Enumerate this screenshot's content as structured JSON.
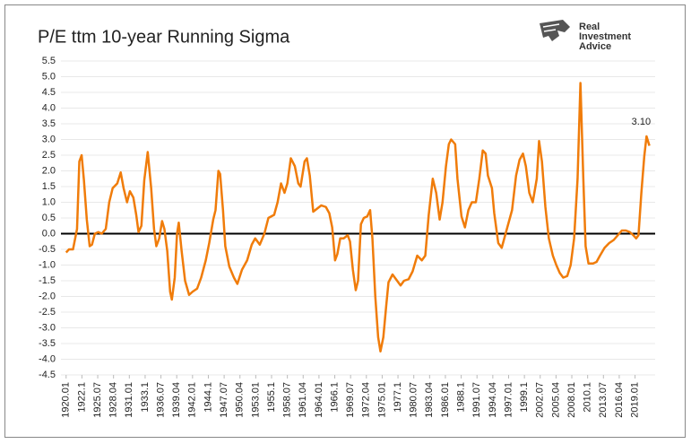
{
  "chart_data": {
    "type": "line",
    "title": "P/E ttm 10-year Running Sigma",
    "x": [
      1920.0,
      1920.5,
      1921.2,
      1921.9,
      1922.3,
      1922.7,
      1923.1,
      1923.6,
      1924.1,
      1924.5,
      1925.0,
      1925.6,
      1926.2,
      1926.9,
      1927.5,
      1928.1,
      1928.9,
      1929.5,
      1930.0,
      1930.6,
      1931.1,
      1931.7,
      1932.2,
      1932.6,
      1933.1,
      1933.6,
      1934.2,
      1934.8,
      1935.3,
      1935.7,
      1936.2,
      1936.7,
      1937.1,
      1937.6,
      1938.1,
      1938.4,
      1938.9,
      1939.3,
      1939.6,
      1940.1,
      1940.7,
      1941.4,
      1942.0,
      1942.8,
      1943.5,
      1944.3,
      1944.9,
      1945.6,
      1946.0,
      1946.5,
      1946.8,
      1947.3,
      1947.7,
      1948.4,
      1949.2,
      1949.8,
      1950.6,
      1951.5,
      1952.3,
      1952.9,
      1953.7,
      1954.5,
      1955.2,
      1956.2,
      1956.8,
      1957.4,
      1958.0,
      1958.5,
      1959.1,
      1959.8,
      1960.4,
      1960.8,
      1961.5,
      1961.9,
      1962.4,
      1963.0,
      1963.7,
      1964.4,
      1965.2,
      1965.8,
      1966.3,
      1966.8,
      1967.2,
      1967.7,
      1968.3,
      1969.0,
      1969.4,
      1969.9,
      1970.4,
      1970.8,
      1971.3,
      1971.8,
      1972.4,
      1972.9,
      1973.3,
      1973.8,
      1974.3,
      1974.7,
      1975.2,
      1975.7,
      1976.1,
      1976.8,
      1977.4,
      1978.2,
      1978.8,
      1979.6,
      1980.3,
      1981.1,
      1981.9,
      1982.5,
      1983.1,
      1983.8,
      1984.4,
      1985.0,
      1985.5,
      1986.1,
      1986.6,
      1987.0,
      1987.7,
      1988.1,
      1988.8,
      1989.4,
      1990.0,
      1990.6,
      1991.3,
      1991.9,
      1992.5,
      1993.0,
      1993.4,
      1994.1,
      1994.5,
      1995.2,
      1995.8,
      1996.4,
      1997.0,
      1997.6,
      1998.3,
      1998.9,
      1999.5,
      2000.0,
      2000.6,
      2001.2,
      2001.9,
      2002.3,
      2002.8,
      2003.4,
      2004.0,
      2004.7,
      2005.3,
      2005.9,
      2006.5,
      2007.2,
      2007.8,
      2008.4,
      2009.0,
      2009.5,
      2010.0,
      2010.4,
      2010.9,
      2011.7,
      2012.3,
      2012.9,
      2013.7,
      2014.5,
      2015.3,
      2016.0,
      2016.7,
      2017.4,
      2018.1,
      2018.7,
      2019.2,
      2019.6,
      2020.1,
      2020.6,
      2021.0,
      2021.5
    ],
    "values": [
      -0.6,
      -0.5,
      -0.5,
      0.15,
      2.3,
      2.5,
      1.7,
      0.45,
      -0.4,
      -0.35,
      0,
      0.05,
      0,
      0.15,
      1.0,
      1.45,
      1.6,
      1.95,
      1.45,
      1.0,
      1.35,
      1.15,
      0.6,
      0.05,
      0.25,
      1.7,
      2.6,
      1.45,
      0.15,
      -0.4,
      -0.15,
      0.4,
      0.15,
      -0.55,
      -1.85,
      -2.1,
      -1.4,
      0,
      0.35,
      -0.55,
      -1.5,
      -1.95,
      -1.85,
      -1.75,
      -1.4,
      -0.85,
      -0.3,
      0.45,
      0.75,
      2.0,
      1.9,
      0.75,
      -0.4,
      -1.05,
      -1.4,
      -1.6,
      -1.15,
      -0.85,
      -0.35,
      -0.15,
      -0.35,
      0,
      0.5,
      0.6,
      1.0,
      1.6,
      1.3,
      1.6,
      2.4,
      2.15,
      1.6,
      1.5,
      2.3,
      2.4,
      1.85,
      0.7,
      0.8,
      0.9,
      0.85,
      0.65,
      0.2,
      -0.85,
      -0.65,
      -0.15,
      -0.15,
      -0.05,
      -0.25,
      -1.15,
      -1.8,
      -1.5,
      0.3,
      0.5,
      0.55,
      0.75,
      -0.15,
      -2.0,
      -3.3,
      -3.75,
      -3.3,
      -2.3,
      -1.55,
      -1.3,
      -1.45,
      -1.65,
      -1.5,
      -1.45,
      -1.2,
      -0.7,
      -0.85,
      -0.7,
      0.6,
      1.75,
      1.3,
      0.45,
      1.0,
      2.15,
      2.85,
      3.0,
      2.85,
      1.75,
      0.55,
      0.2,
      0.75,
      1.0,
      1.0,
      1.75,
      2.65,
      2.55,
      1.85,
      1.45,
      0.65,
      -0.3,
      -0.45,
      -0.05,
      0.35,
      0.75,
      1.85,
      2.35,
      2.55,
      2.15,
      1.3,
      1.0,
      1.75,
      2.95,
      2.3,
      0.85,
      -0.15,
      -0.7,
      -1.0,
      -1.25,
      -1.4,
      -1.35,
      -1.0,
      -0.15,
      1.75,
      4.8,
      1.75,
      -0.4,
      -0.95,
      -0.95,
      -0.9,
      -0.7,
      -0.45,
      -0.3,
      -0.2,
      -0.05,
      0.1,
      0.1,
      0.05,
      -0.05,
      -0.15,
      -0.05,
      1.3,
      2.45,
      3.1,
      2.8
    ],
    "value_labels": [
      null,
      null,
      null,
      null,
      null,
      null,
      null,
      null,
      null,
      null,
      null,
      null,
      null,
      null,
      null,
      null,
      null,
      null,
      null,
      null,
      null,
      null,
      null,
      null,
      null,
      null,
      null,
      null,
      null,
      null,
      null,
      null,
      null,
      null,
      null,
      null,
      null,
      null,
      null,
      null,
      null,
      null,
      null,
      null,
      null,
      null,
      null,
      null,
      null,
      null,
      null,
      null,
      null,
      null,
      null,
      null,
      null,
      null,
      null,
      null,
      null,
      null,
      null,
      null,
      null,
      null,
      null,
      null,
      null,
      null,
      null,
      null,
      null,
      null,
      null,
      null,
      null,
      null,
      null,
      null,
      null,
      null,
      null,
      null,
      null,
      null,
      null,
      null,
      null,
      null,
      null,
      null,
      null,
      null,
      null,
      null,
      null,
      null,
      null,
      null,
      null,
      null,
      null,
      null,
      null,
      null,
      null,
      null,
      null,
      null,
      null,
      null,
      null,
      null,
      null,
      null,
      null,
      null,
      null,
      null,
      null,
      null,
      null,
      null,
      null,
      null,
      null,
      null,
      null,
      null,
      null,
      null,
      null,
      null,
      null,
      null,
      null,
      null,
      null,
      null,
      null,
      null,
      null,
      null,
      null,
      null,
      null,
      null,
      null,
      null,
      null,
      null,
      null,
      null,
      null,
      null,
      null,
      null,
      null,
      null,
      null,
      null,
      null,
      null,
      null,
      null,
      null,
      null,
      null,
      null,
      null,
      null,
      null,
      null,
      "3.10",
      null
    ],
    "color": "#f07c0a",
    "xlim": [
      1919.1,
      2022.5
    ],
    "xticks": [
      {
        "value": 1920,
        "label": "1920.01"
      },
      {
        "value": 1922.75,
        "label": "1922.1"
      },
      {
        "value": 1925.5,
        "label": "1925.07"
      },
      {
        "value": 1928.25,
        "label": "1928.04"
      },
      {
        "value": 1931,
        "label": "1931.01"
      },
      {
        "value": 1933.75,
        "label": "1933.1"
      },
      {
        "value": 1936.5,
        "label": "1936.07"
      },
      {
        "value": 1939.25,
        "label": "1939.04"
      },
      {
        "value": 1942,
        "label": "1942.01"
      },
      {
        "value": 1944.75,
        "label": "1944.1"
      },
      {
        "value": 1947.5,
        "label": "1947.07"
      },
      {
        "value": 1950.25,
        "label": "1950.04"
      },
      {
        "value": 1953,
        "label": "1953.01"
      },
      {
        "value": 1955.75,
        "label": "1955.1"
      },
      {
        "value": 1958.5,
        "label": "1958.07"
      },
      {
        "value": 1961.25,
        "label": "1961.04"
      },
      {
        "value": 1964,
        "label": "1964.01"
      },
      {
        "value": 1966.75,
        "label": "1966.1"
      },
      {
        "value": 1969.5,
        "label": "1969.07"
      },
      {
        "value": 1972.25,
        "label": "1972.04"
      },
      {
        "value": 1975,
        "label": "1975.01"
      },
      {
        "value": 1977.75,
        "label": "1977.1"
      },
      {
        "value": 1980.5,
        "label": "1980.07"
      },
      {
        "value": 1983.25,
        "label": "1983.04"
      },
      {
        "value": 1986,
        "label": "1986.01"
      },
      {
        "value": 1988.75,
        "label": "1988.1"
      },
      {
        "value": 1991.5,
        "label": "1991.07"
      },
      {
        "value": 1994.25,
        "label": "1994.04"
      },
      {
        "value": 1997,
        "label": "1997.01"
      },
      {
        "value": 1999.75,
        "label": "1999.1"
      },
      {
        "value": 2002.5,
        "label": "2002.07"
      },
      {
        "value": 2005.25,
        "label": "2005.04"
      },
      {
        "value": 2008,
        "label": "2008.01"
      },
      {
        "value": 2010.75,
        "label": "2010.1"
      },
      {
        "value": 2013.5,
        "label": "2013.07"
      },
      {
        "value": 2016.25,
        "label": "2016.04"
      },
      {
        "value": 2019,
        "label": "2019.01"
      }
    ],
    "ylim": [
      -4.5,
      5.5
    ],
    "yticks": [
      5.5,
      {
        "value": 5,
        "label": "5.0"
      },
      4.5,
      {
        "value": 4,
        "label": "4.0"
      },
      3.5,
      {
        "value": 3,
        "label": "3.0"
      },
      2.5,
      {
        "value": 2,
        "label": "2.0"
      },
      1.5,
      {
        "value": 1,
        "label": "1.0"
      },
      0.5,
      {
        "value": 0,
        "label": "0.0"
      },
      -0.5,
      {
        "value": -1,
        "label": "-1.0"
      },
      -1.5,
      {
        "value": -2,
        "label": "-2.0"
      },
      -2.5,
      {
        "value": -3,
        "label": "-3.0"
      },
      -3.5,
      {
        "value": -4,
        "label": "-4.0"
      },
      -4.5
    ],
    "grid": true
  },
  "logo": {
    "lines": [
      "Real",
      "Investment",
      "Advice"
    ]
  }
}
